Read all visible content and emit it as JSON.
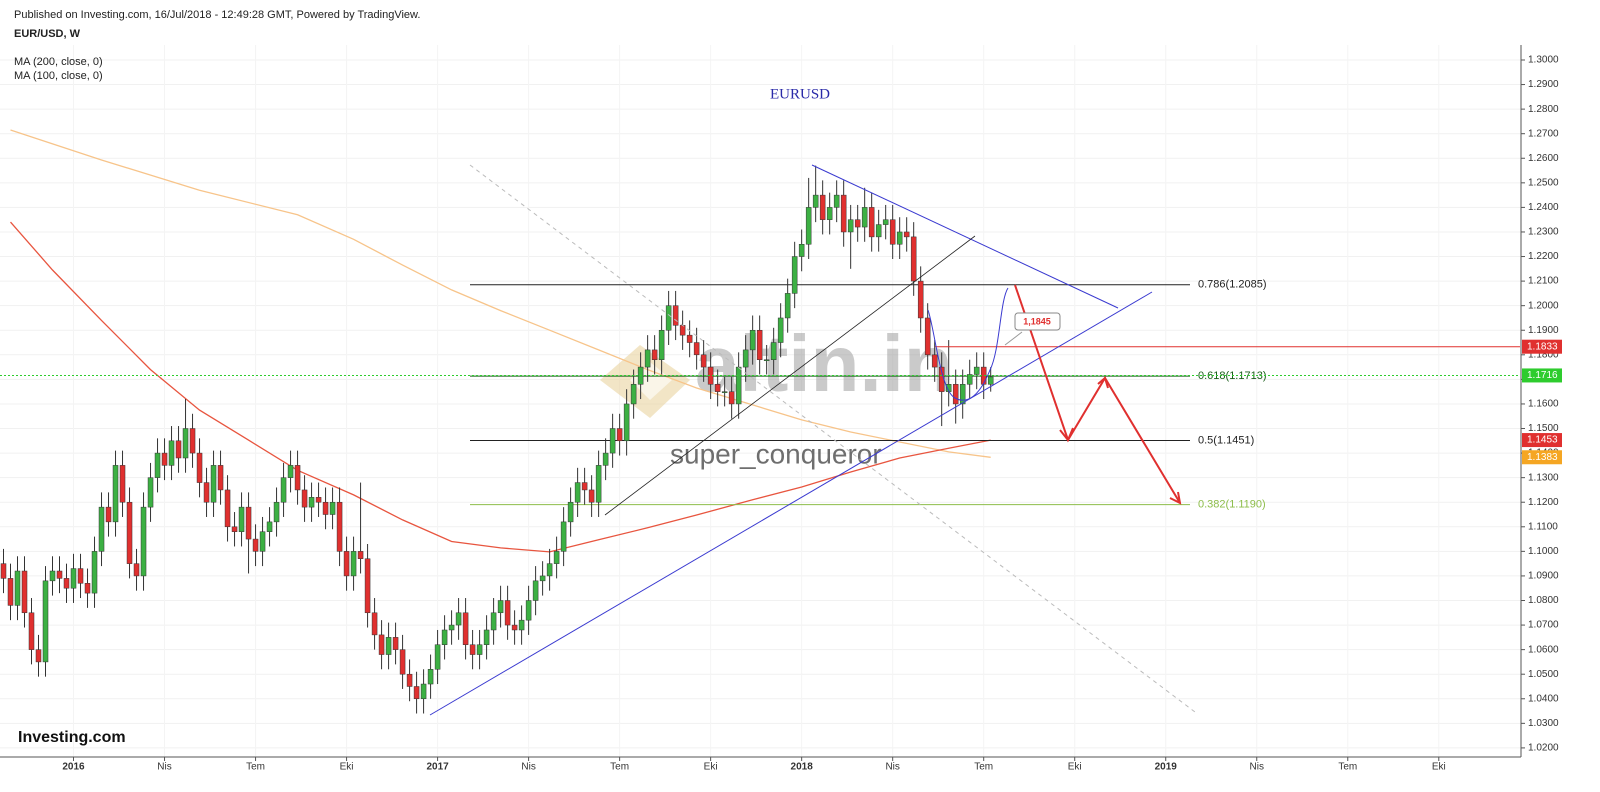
{
  "header": {
    "published": "Published on Investing.com, 16/Jul/2018 - 12:49:28 GMT, Powered by TradingView.",
    "symbol": "EUR/USD, W"
  },
  "watermark": {
    "brand": "altin.in",
    "author": "super_conqueror",
    "logo": "Investing.com"
  },
  "chart_data": {
    "type": "candlestick",
    "title": "EURUSD",
    "up_color": "#3cb043",
    "down_color": "#e0302f",
    "grid": true,
    "x": [
      0,
      1,
      2,
      3,
      4,
      5,
      6,
      7,
      8,
      9,
      10,
      11,
      12,
      13,
      14,
      15,
      16,
      17,
      18,
      19,
      20,
      21,
      22,
      23,
      24,
      25,
      26,
      27,
      28,
      29,
      30,
      31,
      32,
      33,
      34,
      35,
      36,
      37,
      38,
      39,
      40,
      41,
      42,
      43,
      44,
      45,
      46,
      47,
      48,
      49,
      50,
      51,
      52,
      53,
      54,
      55,
      56,
      57,
      58,
      59,
      60,
      61,
      62,
      63,
      64,
      65,
      66,
      67,
      68,
      69,
      70,
      71,
      72,
      73,
      74,
      75,
      76,
      77,
      78,
      79,
      80,
      81,
      82,
      83,
      84,
      85,
      86,
      87,
      88,
      89,
      90,
      91,
      92,
      93,
      94,
      95,
      96,
      97,
      98,
      99,
      100,
      101,
      102,
      103,
      104,
      105,
      106,
      107,
      108,
      109,
      110,
      111,
      112,
      113,
      114,
      115,
      116,
      117,
      118,
      119,
      120,
      121,
      122,
      123,
      124,
      125,
      126,
      127,
      128,
      129,
      130,
      131,
      132,
      133,
      134,
      135,
      136,
      137,
      138,
      139,
      140,
      141
    ],
    "open": [
      1.095,
      1.089,
      1.078,
      1.092,
      1.075,
      1.06,
      1.055,
      1.088,
      1.092,
      1.089,
      1.085,
      1.093,
      1.087,
      1.083,
      1.1,
      1.118,
      1.112,
      1.135,
      1.12,
      1.095,
      1.09,
      1.118,
      1.13,
      1.14,
      1.135,
      1.145,
      1.138,
      1.15,
      1.14,
      1.128,
      1.12,
      1.135,
      1.125,
      1.11,
      1.108,
      1.118,
      1.105,
      1.1,
      1.108,
      1.112,
      1.12,
      1.13,
      1.135,
      1.125,
      1.118,
      1.122,
      1.12,
      1.115,
      1.12,
      1.1,
      1.09,
      1.1,
      1.097,
      1.075,
      1.066,
      1.058,
      1.065,
      1.06,
      1.05,
      1.045,
      1.04,
      1.046,
      1.052,
      1.062,
      1.068,
      1.07,
      1.075,
      1.062,
      1.058,
      1.062,
      1.068,
      1.075,
      1.08,
      1.07,
      1.068,
      1.072,
      1.08,
      1.088,
      1.09,
      1.095,
      1.1,
      1.112,
      1.12,
      1.128,
      1.125,
      1.12,
      1.135,
      1.14,
      1.15,
      1.145,
      1.16,
      1.168,
      1.175,
      1.182,
      1.178,
      1.19,
      1.2,
      1.192,
      1.188,
      1.185,
      1.18,
      1.175,
      1.168,
      1.165,
      1.165,
      1.16,
      1.175,
      1.182,
      1.19,
      1.178,
      1.178,
      1.185,
      1.195,
      1.205,
      1.22,
      1.225,
      1.24,
      1.245,
      1.235,
      1.24,
      1.245,
      1.23,
      1.235,
      1.232,
      1.24,
      1.228,
      1.233,
      1.235,
      1.225,
      1.23,
      1.228,
      1.21,
      1.195,
      1.18,
      1.175,
      1.165,
      1.168,
      1.16,
      1.168,
      1.172,
      1.175,
      1.168
    ],
    "high": [
      1.101,
      1.095,
      1.098,
      1.098,
      1.081,
      1.066,
      1.094,
      1.098,
      1.098,
      1.095,
      1.099,
      1.099,
      1.093,
      1.106,
      1.124,
      1.124,
      1.141,
      1.141,
      1.126,
      1.101,
      1.124,
      1.136,
      1.146,
      1.146,
      1.151,
      1.151,
      1.162,
      1.156,
      1.146,
      1.134,
      1.141,
      1.141,
      1.131,
      1.116,
      1.124,
      1.124,
      1.111,
      1.114,
      1.118,
      1.126,
      1.136,
      1.141,
      1.141,
      1.131,
      1.128,
      1.128,
      1.126,
      1.126,
      1.126,
      1.106,
      1.106,
      1.128,
      1.103,
      1.081,
      1.072,
      1.071,
      1.071,
      1.066,
      1.056,
      1.051,
      1.052,
      1.058,
      1.068,
      1.074,
      1.076,
      1.081,
      1.081,
      1.068,
      1.068,
      1.074,
      1.081,
      1.086,
      1.086,
      1.076,
      1.078,
      1.086,
      1.094,
      1.096,
      1.101,
      1.106,
      1.118,
      1.126,
      1.134,
      1.134,
      1.131,
      1.141,
      1.146,
      1.156,
      1.156,
      1.166,
      1.174,
      1.181,
      1.188,
      1.188,
      1.196,
      1.206,
      1.206,
      1.198,
      1.194,
      1.191,
      1.186,
      1.181,
      1.174,
      1.171,
      1.171,
      1.181,
      1.188,
      1.196,
      1.196,
      1.184,
      1.191,
      1.201,
      1.211,
      1.226,
      1.231,
      1.252,
      1.257,
      1.251,
      1.246,
      1.251,
      1.251,
      1.241,
      1.241,
      1.248,
      1.246,
      1.239,
      1.241,
      1.241,
      1.236,
      1.236,
      1.234,
      1.216,
      1.201,
      1.186,
      1.181,
      1.186,
      1.174,
      1.174,
      1.178,
      1.181,
      1.181,
      1.175
    ],
    "low": [
      1.083,
      1.072,
      1.072,
      1.069,
      1.054,
      1.049,
      1.049,
      1.082,
      1.083,
      1.079,
      1.079,
      1.081,
      1.077,
      1.077,
      1.094,
      1.106,
      1.106,
      1.114,
      1.089,
      1.084,
      1.084,
      1.112,
      1.124,
      1.129,
      1.129,
      1.132,
      1.132,
      1.134,
      1.122,
      1.114,
      1.114,
      1.119,
      1.104,
      1.102,
      1.102,
      1.091,
      1.094,
      1.094,
      1.102,
      1.106,
      1.114,
      1.124,
      1.119,
      1.112,
      1.112,
      1.114,
      1.109,
      1.109,
      1.094,
      1.084,
      1.084,
      1.091,
      1.069,
      1.06,
      1.052,
      1.052,
      1.054,
      1.044,
      1.039,
      1.034,
      1.034,
      1.04,
      1.046,
      1.056,
      1.062,
      1.064,
      1.056,
      1.052,
      1.052,
      1.056,
      1.062,
      1.069,
      1.064,
      1.062,
      1.062,
      1.066,
      1.074,
      1.082,
      1.084,
      1.089,
      1.094,
      1.106,
      1.114,
      1.119,
      1.114,
      1.114,
      1.129,
      1.134,
      1.139,
      1.139,
      1.154,
      1.162,
      1.169,
      1.172,
      1.172,
      1.184,
      1.186,
      1.182,
      1.179,
      1.174,
      1.169,
      1.162,
      1.159,
      1.159,
      1.154,
      1.154,
      1.169,
      1.176,
      1.172,
      1.172,
      1.172,
      1.179,
      1.189,
      1.199,
      1.214,
      1.219,
      1.234,
      1.229,
      1.229,
      1.234,
      1.224,
      1.215,
      1.226,
      1.226,
      1.222,
      1.222,
      1.227,
      1.219,
      1.219,
      1.222,
      1.204,
      1.189,
      1.174,
      1.169,
      1.151,
      1.159,
      1.152,
      1.154,
      1.162,
      1.166,
      1.162,
      1.165
    ],
    "close": [
      1.089,
      1.078,
      1.092,
      1.075,
      1.06,
      1.055,
      1.088,
      1.092,
      1.089,
      1.085,
      1.093,
      1.087,
      1.083,
      1.1,
      1.118,
      1.112,
      1.135,
      1.12,
      1.095,
      1.09,
      1.118,
      1.13,
      1.14,
      1.135,
      1.145,
      1.138,
      1.15,
      1.14,
      1.128,
      1.12,
      1.135,
      1.125,
      1.11,
      1.108,
      1.118,
      1.105,
      1.1,
      1.108,
      1.112,
      1.12,
      1.13,
      1.135,
      1.125,
      1.118,
      1.122,
      1.12,
      1.115,
      1.12,
      1.1,
      1.09,
      1.1,
      1.097,
      1.075,
      1.066,
      1.058,
      1.065,
      1.06,
      1.05,
      1.045,
      1.04,
      1.046,
      1.052,
      1.062,
      1.068,
      1.07,
      1.075,
      1.062,
      1.058,
      1.062,
      1.068,
      1.075,
      1.08,
      1.07,
      1.068,
      1.072,
      1.08,
      1.088,
      1.09,
      1.095,
      1.1,
      1.112,
      1.12,
      1.128,
      1.125,
      1.12,
      1.135,
      1.14,
      1.15,
      1.145,
      1.16,
      1.168,
      1.175,
      1.182,
      1.178,
      1.19,
      1.2,
      1.192,
      1.188,
      1.185,
      1.18,
      1.175,
      1.168,
      1.165,
      1.165,
      1.16,
      1.175,
      1.182,
      1.19,
      1.178,
      1.178,
      1.185,
      1.195,
      1.205,
      1.22,
      1.225,
      1.24,
      1.245,
      1.235,
      1.24,
      1.245,
      1.23,
      1.235,
      1.232,
      1.24,
      1.228,
      1.233,
      1.235,
      1.225,
      1.23,
      1.228,
      1.21,
      1.195,
      1.18,
      1.175,
      1.165,
      1.168,
      1.16,
      1.168,
      1.172,
      1.175,
      1.168,
      1.171
    ],
    "ma_lines": [
      {
        "name": "MA (200, close, 0)",
        "color": "#f7c48a",
        "x": [
          1,
          14,
          28,
          42,
          50,
          57,
          64,
          71,
          78,
          85,
          92,
          99,
          107,
          114,
          121,
          128,
          135,
          141
        ],
        "values": [
          1.2715,
          1.2593,
          1.247,
          1.237,
          1.227,
          1.2165,
          1.2064,
          1.198,
          1.19,
          1.182,
          1.174,
          1.1665,
          1.1596,
          1.1535,
          1.1486,
          1.1445,
          1.1405,
          1.1383
        ]
      },
      {
        "name": "MA (100, close, 0)",
        "color": "#e8553f",
        "x": [
          1,
          7,
          14,
          21,
          28,
          35,
          42,
          50,
          57,
          64,
          71,
          78,
          85,
          92,
          99,
          107,
          114,
          121,
          128,
          135,
          141
        ],
        "values": [
          1.234,
          1.2145,
          1.194,
          1.174,
          1.1575,
          1.1453,
          1.133,
          1.123,
          1.1128,
          1.104,
          1.1014,
          1.0998,
          1.1047,
          1.1096,
          1.1148,
          1.121,
          1.1262,
          1.1323,
          1.138,
          1.142,
          1.1453
        ]
      }
    ],
    "fib_levels": [
      {
        "label": "0.786(1.2085)",
        "value": 1.2085,
        "color": "#222222"
      },
      {
        "label": "0.618(1.1713)",
        "value": 1.1713,
        "color": "#1a5e1a"
      },
      {
        "label": "0.5(1.1451)",
        "value": 1.1451,
        "color": "#222222"
      },
      {
        "label": "0.382(1.1190)",
        "value": 1.119,
        "color": "#8dbd4a"
      }
    ],
    "price_tags": [
      {
        "value": 1.1833,
        "color": "#e0302f",
        "line": "solid"
      },
      {
        "value": 1.1716,
        "color": "#2ecc2e",
        "line": "dotted"
      },
      {
        "value": 1.1453,
        "color": "#e0302f"
      },
      {
        "value": 1.1383,
        "color": "#f5a623"
      }
    ],
    "annotation": "1,1845",
    "xlim": [
      -0.5,
      216.6
    ],
    "xticks": [
      {
        "value": 10,
        "label": "2016"
      },
      {
        "value": 23,
        "label": "Nis"
      },
      {
        "value": 36,
        "label": "Tem"
      },
      {
        "value": 49,
        "label": "Eki"
      },
      {
        "value": 62,
        "label": "2017"
      },
      {
        "value": 75,
        "label": "Nis"
      },
      {
        "value": 88,
        "label": "Tem"
      },
      {
        "value": 101,
        "label": "Eki"
      },
      {
        "value": 114,
        "label": "2018"
      },
      {
        "value": 127,
        "label": "Nis"
      },
      {
        "value": 140,
        "label": "Tem"
      },
      {
        "value": 153,
        "label": "Eki"
      },
      {
        "value": 166,
        "label": "2019"
      },
      {
        "value": 179,
        "label": "Nis"
      },
      {
        "value": 192,
        "label": "Tem"
      },
      {
        "value": 205,
        "label": "Eki"
      }
    ],
    "ylim": [
      1.0163,
      1.3061
    ],
    "yticks": [
      {
        "value": 1.02,
        "label": "1.0200"
      },
      {
        "value": 1.03,
        "label": "1.0300"
      },
      {
        "value": 1.04,
        "label": "1.0400"
      },
      {
        "value": 1.05,
        "label": "1.0500"
      },
      {
        "value": 1.06,
        "label": "1.0600"
      },
      {
        "value": 1.07,
        "label": "1.0700"
      },
      {
        "value": 1.08,
        "label": "1.0800"
      },
      {
        "value": 1.09,
        "label": "1.0900"
      },
      {
        "value": 1.1,
        "label": "1.1000"
      },
      {
        "value": 1.11,
        "label": "1.1100"
      },
      {
        "value": 1.12,
        "label": "1.1200"
      },
      {
        "value": 1.13,
        "label": "1.1300"
      },
      {
        "value": 1.14,
        "label": "1.1400"
      },
      {
        "value": 1.15,
        "label": "1.1500"
      },
      {
        "value": 1.16,
        "label": "1.1600"
      },
      {
        "value": 1.17,
        "label": "1.1700"
      },
      {
        "value": 1.18,
        "label": "1.1800"
      },
      {
        "value": 1.19,
        "label": "1.1900"
      },
      {
        "value": 1.2,
        "label": "1.2000"
      },
      {
        "value": 1.21,
        "label": "1.2100"
      },
      {
        "value": 1.22,
        "label": "1.2200"
      },
      {
        "value": 1.23,
        "label": "1.2300"
      },
      {
        "value": 1.24,
        "label": "1.2400"
      },
      {
        "value": 1.25,
        "label": "1.2500"
      },
      {
        "value": 1.26,
        "label": "1.2600"
      },
      {
        "value": 1.27,
        "label": "1.2700"
      },
      {
        "value": 1.28,
        "label": "1.2800"
      },
      {
        "value": 1.29,
        "label": "1.2900"
      },
      {
        "value": 1.3,
        "label": "1.3000"
      }
    ]
  }
}
